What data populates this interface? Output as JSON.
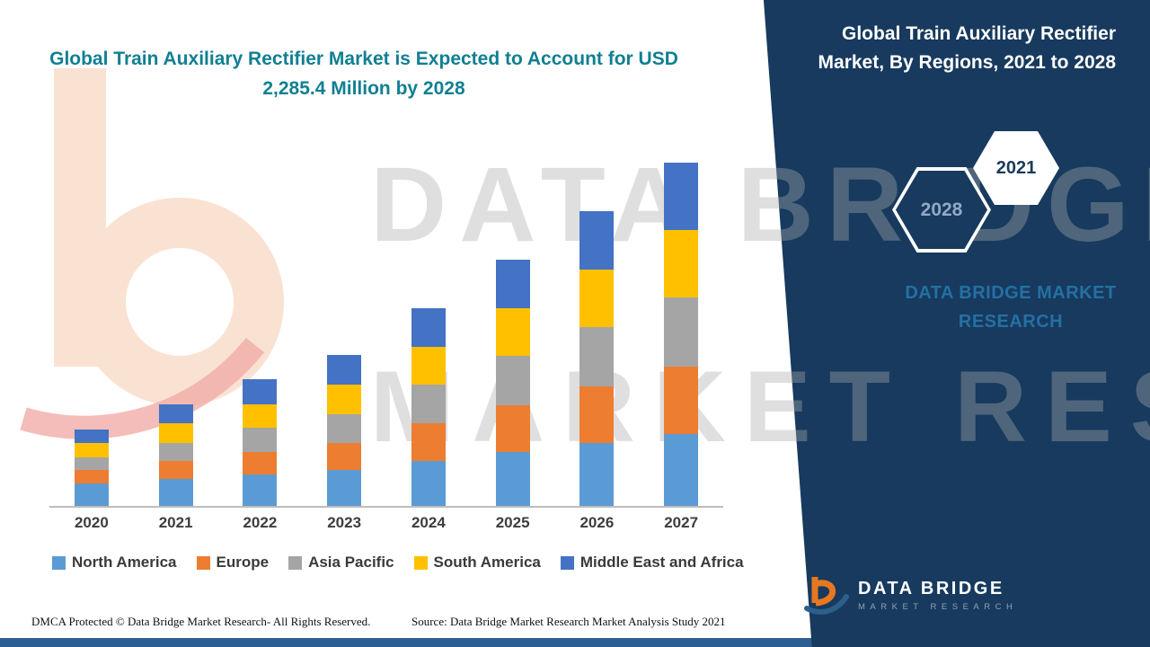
{
  "watermark": {
    "line1": "DATA BRIDGE",
    "line2": "MARKET RESEARCH"
  },
  "footer": {
    "dmca": "DMCA Protected © Data Bridge Market Research- All Rights Reserved.",
    "source": "Source: Data Bridge Market Research Market Analysis Study 2021"
  },
  "right_panel": {
    "title": "Global Train Auxiliary Rectifier Market, By Regions, 2021 to 2028",
    "hexagons": [
      {
        "label": "2028"
      },
      {
        "label": "2021"
      }
    ],
    "brand_text": "DATA BRIDGE MARKET RESEARCH",
    "logo": {
      "line1": "DATA BRIDGE",
      "line2": "MARKET RESEARCH"
    }
  },
  "colors": {
    "panel_navy": "#173A5E",
    "title_teal": "#117F92",
    "brand_blue": "#2470A4",
    "bottom_strip_blue": "#2B5F94",
    "watermark_gray": "#ACACAC",
    "logo_orange": "#E87722",
    "logo_red": "#E0493C"
  },
  "chart_data": {
    "type": "bar",
    "stacked": true,
    "title": "Global Train Auxiliary Rectifier Market is Expected to Account for USD 2,285.4 Million by 2028",
    "categories": [
      "2020",
      "2021",
      "2022",
      "2023",
      "2024",
      "2025",
      "2026",
      "2027"
    ],
    "series": [
      {
        "name": "North America",
        "color": "#5B9BD5",
        "values": [
          135,
          162,
          189,
          216,
          270,
          324,
          378,
          432
        ]
      },
      {
        "name": "Europe",
        "color": "#ED7D31",
        "values": [
          81,
          108,
          135,
          162,
          227,
          281,
          340,
          405
        ]
      },
      {
        "name": "Asia Pacific",
        "color": "#A5A5A5",
        "values": [
          76,
          108,
          146,
          173,
          232,
          297,
          356,
          416
        ]
      },
      {
        "name": "South America",
        "color": "#FFC000",
        "values": [
          86,
          119,
          140,
          178,
          227,
          286,
          346,
          405
        ]
      },
      {
        "name": "Middle East and Africa",
        "color": "#4472C4",
        "values": [
          81,
          113,
          151,
          178,
          232,
          292,
          351,
          405
        ]
      }
    ],
    "xlabel": "",
    "ylabel": "",
    "units": "USD Million (estimated; y-axis unlabeled in figure)",
    "ylim": [
      0,
      2100
    ],
    "grid": false,
    "legend_position": "bottom",
    "note": "Estimated stacked totals: 2020≈459, 2021≈610, 2022≈761, 2023≈907, 2024≈1188, 2025≈1480, 2026≈1771, 2027≈2063; title states 2028 total = USD 2,285.4 Million"
  }
}
